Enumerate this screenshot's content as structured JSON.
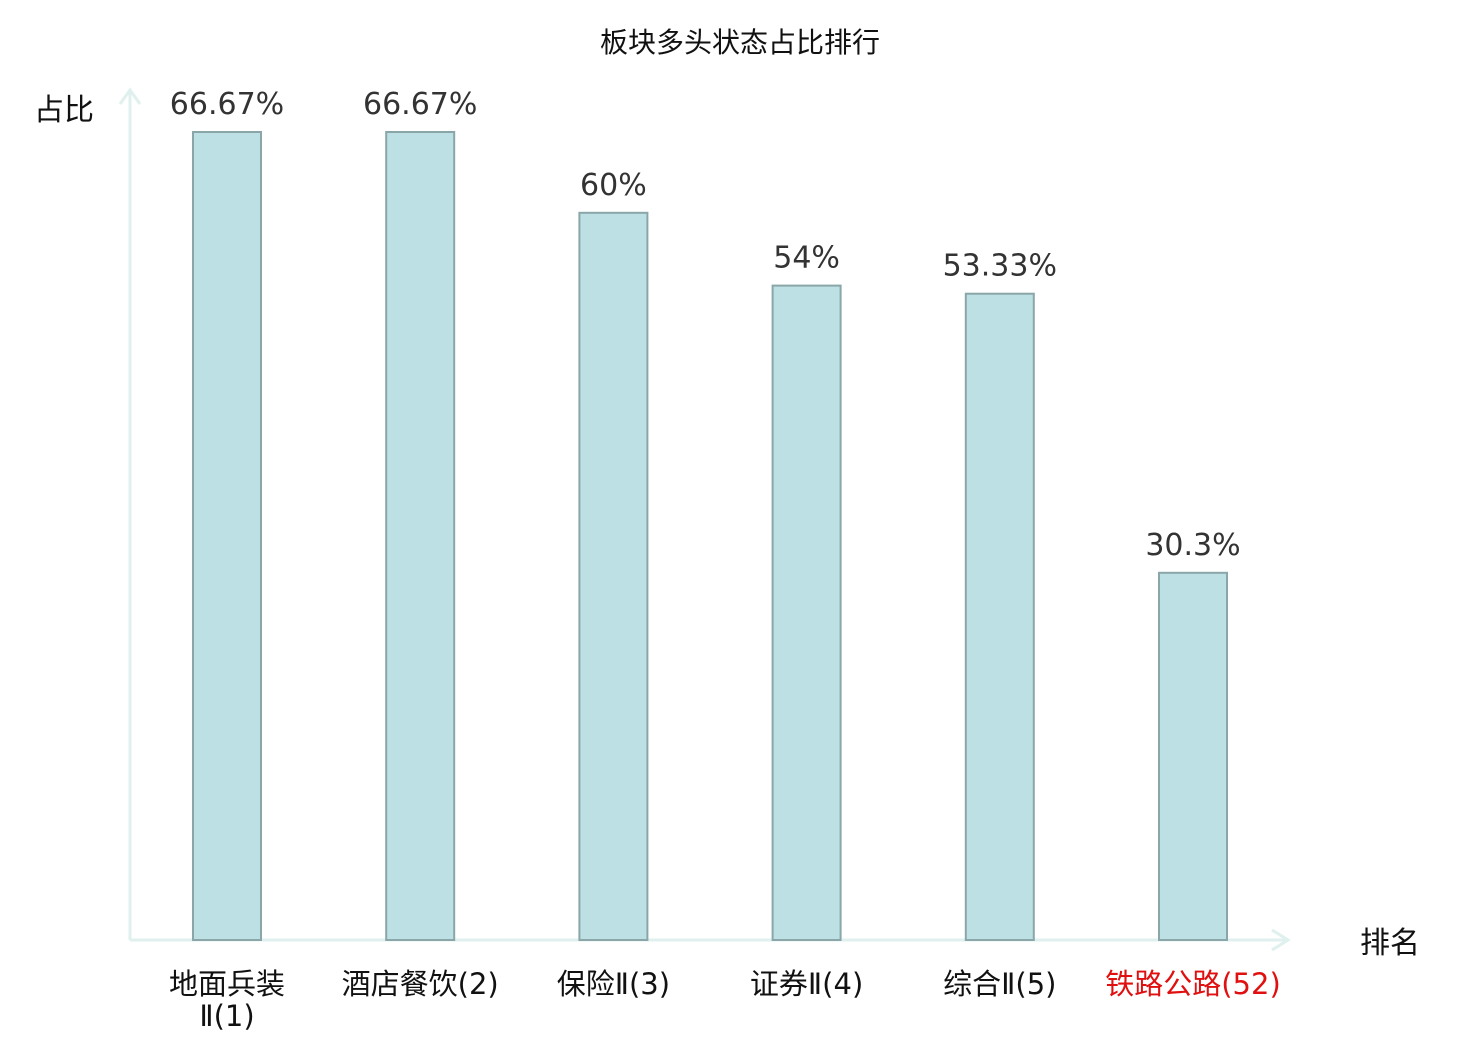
{
  "chart_data": {
    "type": "bar",
    "title": "板块多头状态占比排行",
    "ylabel": "占比",
    "xlabel": "排名",
    "ylim": [
      0,
      70
    ],
    "grid": false,
    "categories": [
      {
        "lines": [
          "地面兵装",
          "Ⅱ(1)"
        ],
        "highlight": false
      },
      {
        "lines": [
          "酒店餐饮(2)"
        ],
        "highlight": false
      },
      {
        "lines": [
          "保险Ⅱ(3)"
        ],
        "highlight": false
      },
      {
        "lines": [
          "证券Ⅱ(4)"
        ],
        "highlight": false
      },
      {
        "lines": [
          "综合Ⅱ(5)"
        ],
        "highlight": false
      },
      {
        "lines": [
          "铁路公路(52)"
        ],
        "highlight": true
      }
    ],
    "values": [
      66.67,
      66.67,
      60,
      54,
      53.33,
      30.3
    ],
    "value_labels": [
      "66.67%",
      "66.67%",
      "60%",
      "54%",
      "53.33%",
      "30.3%"
    ],
    "colors": {
      "bar_fill": "#bce0e3",
      "bar_stroke": "#8aa6a8",
      "axis": "#dff0ee",
      "highlight": "#e01010",
      "label": "#111111",
      "value_label": "#333333"
    }
  }
}
